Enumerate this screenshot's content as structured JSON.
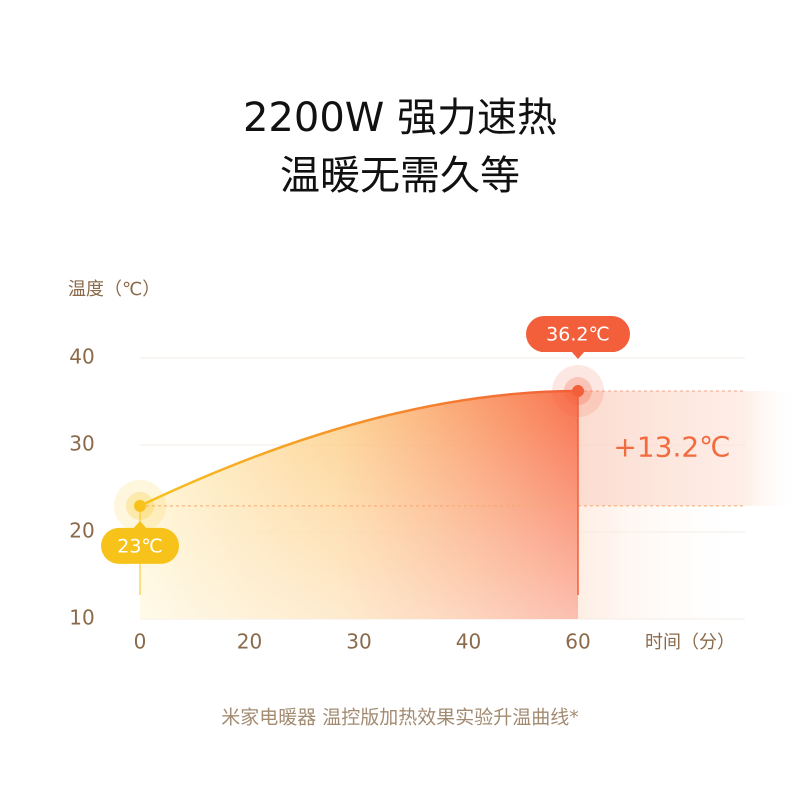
{
  "chart_data": {
    "type": "line",
    "title": [
      "2200W 强力速热",
      "温暖无需久等"
    ],
    "y_label": "温度（℃）",
    "x_label": "时间（分）",
    "categories": [
      "0",
      "20",
      "30",
      "40",
      "60"
    ],
    "series": [
      {
        "color_start": "#f7c31b",
        "color_end": "#f25f3a",
        "values": [
          23,
          null,
          null,
          null,
          36.2
        ],
        "value_labels": [
          "23℃",
          null,
          null,
          null,
          "36.2℃"
        ]
      }
    ],
    "annotation": "+13.2℃",
    "ylim": [
      10,
      40
    ],
    "yticks": [
      10,
      20,
      30,
      40
    ],
    "grid": true,
    "footnote": "米家电暖器 温控版加热效果实验升温曲线*"
  }
}
